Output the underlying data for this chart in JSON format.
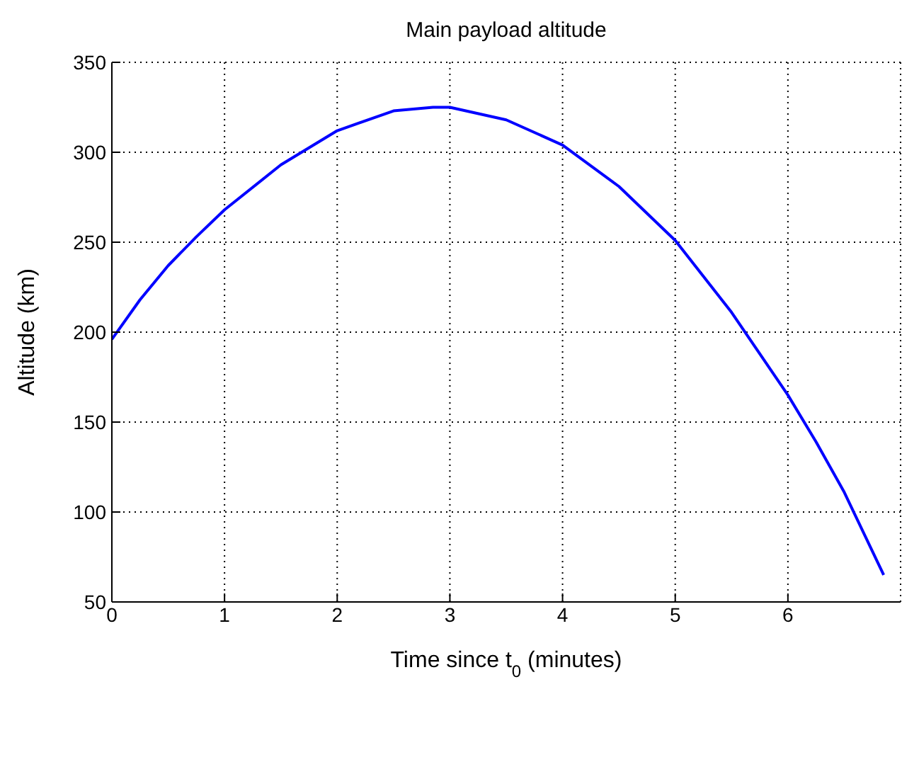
{
  "chart_data": {
    "type": "line",
    "title": "Main payload altitude",
    "xlabel": "Time since t$_{0}$ (minutes)",
    "ylabel": "Altitude (km)",
    "x": [
      0,
      0.25,
      0.5,
      0.75,
      1,
      1.5,
      2,
      2.5,
      2.85,
      3,
      3.5,
      4,
      4.5,
      5,
      5.5,
      6,
      6.25,
      6.5,
      6.85
    ],
    "series": [
      {
        "color": "#0000ff",
        "values": [
          196,
          218,
          237,
          253,
          268,
          293,
          312,
          323,
          325,
          325,
          318,
          304,
          281,
          251,
          211,
          165,
          139,
          111,
          65
        ]
      }
    ],
    "xlim": [
      0,
      7
    ],
    "xticks": [
      0,
      1,
      2,
      3,
      4,
      5,
      6
    ],
    "ylim": [
      50,
      350
    ],
    "yticks": [
      50,
      100,
      150,
      200,
      250,
      300,
      350
    ],
    "grid": true,
    "line_style": "solid",
    "marker": "none"
  }
}
